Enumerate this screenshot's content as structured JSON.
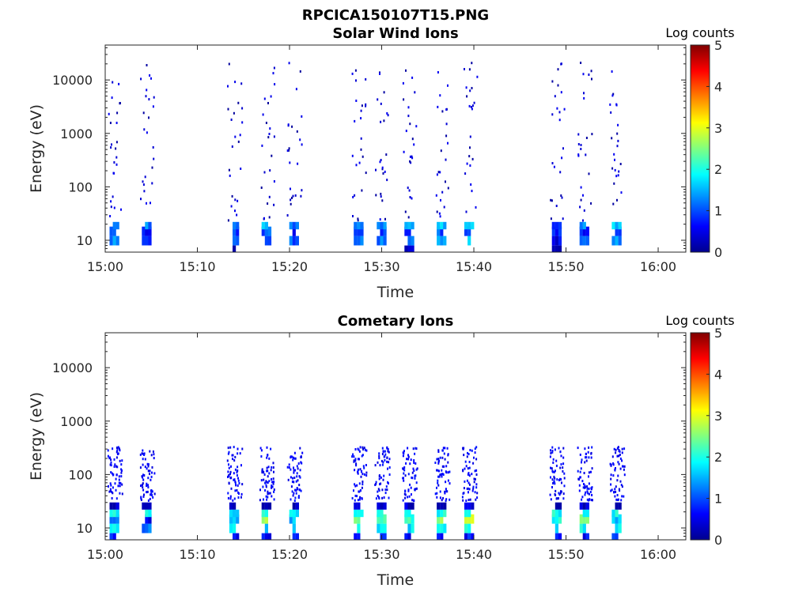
{
  "figure_title": "RPCICA150107T15.PNG",
  "chart_data": [
    {
      "type": "heatmap",
      "title": "Solar Wind Ions",
      "xlabel": "Time",
      "ylabel": "Energy (eV)",
      "y_scale": "log",
      "x_ticks": [
        "15:00",
        "15:10",
        "15:20",
        "15:30",
        "15:40",
        "15:50",
        "16:00"
      ],
      "y_ticks": [
        "10",
        "100",
        "1000",
        "10000"
      ],
      "xlim": [
        "15:00",
        "16:03"
      ],
      "ylim": [
        6,
        45000
      ],
      "colorbar": {
        "label": "Log counts",
        "ticks": [
          "0",
          "1",
          "2",
          "3",
          "4",
          "5"
        ],
        "range": [
          0,
          5
        ],
        "colormap": "jet"
      },
      "bursts": [
        {
          "t": "15:01",
          "low": [
            [
              8,
              12,
              1.2
            ],
            [
              12,
              18,
              0.8
            ],
            [
              16,
              22,
              1.5
            ]
          ],
          "scatter": [
            0.5,
            1.2,
            1.6
          ]
        },
        {
          "t": "15:04.5",
          "low": [
            [
              8,
              12,
              1.0
            ],
            [
              12,
              18,
              0.7
            ],
            [
              16,
              22,
              1.3
            ]
          ],
          "scatter": [
            0.5,
            1.2,
            1.6
          ]
        },
        {
          "t": "15:14",
          "low": [
            [
              6,
              8,
              0.3
            ],
            [
              8,
              12,
              1.0
            ],
            [
              12,
              18,
              0.9
            ],
            [
              16,
              22,
              1.2
            ]
          ],
          "scatter": [
            0.4,
            1.1,
            1.5
          ]
        },
        {
          "t": "15:17.5",
          "low": [
            [
              8,
              12,
              1.2
            ],
            [
              12,
              18,
              1.0
            ],
            [
              16,
              22,
              1.5
            ]
          ],
          "scatter": [
            0.4,
            1.1,
            1.5
          ]
        },
        {
          "t": "15:20.5",
          "low": [
            [
              8,
              12,
              1.0
            ],
            [
              12,
              18,
              0.8
            ],
            [
              16,
              22,
              1.2
            ]
          ],
          "scatter": [
            0.4,
            1.1,
            1.5
          ]
        },
        {
          "t": "15:27.5",
          "low": [
            [
              8,
              12,
              1.2
            ],
            [
              12,
              18,
              0.8
            ],
            [
              16,
              22,
              1.4
            ]
          ],
          "scatter": [
            0.5,
            1.2,
            1.6
          ]
        },
        {
          "t": "15:30",
          "low": [
            [
              8,
              12,
              1.2
            ],
            [
              12,
              18,
              1.0
            ],
            [
              16,
              22,
              1.4
            ]
          ],
          "scatter": [
            0.5,
            1.2,
            1.6
          ]
        },
        {
          "t": "15:33",
          "low": [
            [
              6,
              8,
              0.3
            ],
            [
              8,
              12,
              1.2
            ],
            [
              12,
              18,
              1.0
            ],
            [
              16,
              22,
              1.4
            ]
          ],
          "scatter": [
            0.5,
            1.2,
            1.6
          ]
        },
        {
          "t": "15:36.5",
          "low": [
            [
              8,
              12,
              1.4
            ],
            [
              12,
              18,
              1.0
            ],
            [
              16,
              22,
              1.6
            ]
          ],
          "scatter": [
            0.5,
            1.2,
            1.6
          ]
        },
        {
          "t": "15:39.5",
          "low": [
            [
              8,
              12,
              1.6
            ],
            [
              12,
              18,
              1.2
            ],
            [
              16,
              22,
              1.8
            ]
          ],
          "scatter": [
            0.5,
            1.2,
            1.6
          ]
        },
        {
          "t": "15:49",
          "low": [
            [
              6,
              8,
              0.3
            ],
            [
              8,
              12,
              0.6
            ],
            [
              12,
              18,
              0.8
            ],
            [
              16,
              22,
              1.0
            ]
          ],
          "scatter": [
            0.5,
            1.2,
            1.6
          ]
        },
        {
          "t": "15:52",
          "low": [
            [
              8,
              12,
              1.0
            ],
            [
              12,
              18,
              0.8
            ],
            [
              16,
              22,
              1.2
            ]
          ],
          "scatter": [
            0.5,
            1.2,
            1.6
          ]
        },
        {
          "t": "15:55.5",
          "low": [
            [
              8,
              12,
              1.3
            ],
            [
              12,
              18,
              1.0
            ],
            [
              16,
              22,
              1.5
            ]
          ],
          "scatter": [
            0.5,
            1.2,
            1.6
          ]
        }
      ]
    },
    {
      "type": "heatmap",
      "title": "Cometary Ions",
      "xlabel": "Time",
      "ylabel": "Energy (eV)",
      "y_scale": "log",
      "x_ticks": [
        "15:00",
        "15:10",
        "15:20",
        "15:30",
        "15:40",
        "15:50",
        "16:00"
      ],
      "y_ticks": [
        "10",
        "100",
        "1000",
        "10000"
      ],
      "xlim": [
        "15:00",
        "16:03"
      ],
      "ylim": [
        6,
        45000
      ],
      "colorbar": {
        "label": "Log counts",
        "ticks": [
          "0",
          "1",
          "2",
          "3",
          "4",
          "5"
        ],
        "range": [
          0,
          5
        ],
        "colormap": "jet"
      },
      "bursts": [
        {
          "t": "15:01",
          "low": [
            [
              6,
              8,
              0.7
            ],
            [
              8,
              12,
              1.8
            ],
            [
              12,
              18,
              1.0
            ],
            [
              16,
              22,
              1.9
            ],
            [
              22,
              30,
              0.3
            ]
          ],
          "scatter": [
            1.6,
            2.1,
            2.3
          ]
        },
        {
          "t": "15:04.5",
          "low": [
            [
              8,
              12,
              1.2
            ],
            [
              12,
              18,
              0.6
            ],
            [
              16,
              22,
              1.8
            ],
            [
              22,
              30,
              0.3
            ]
          ],
          "scatter": [
            1.5,
            2.0,
            2.3
          ]
        },
        {
          "t": "15:14",
          "low": [
            [
              6,
              8,
              0.7
            ],
            [
              8,
              12,
              2.0
            ],
            [
              12,
              18,
              1.6
            ],
            [
              16,
              22,
              1.8
            ],
            [
              22,
              30,
              0.3
            ]
          ],
          "scatter": [
            1.6,
            2.1,
            2.4
          ]
        },
        {
          "t": "15:17.5",
          "low": [
            [
              6,
              8,
              0.7
            ],
            [
              8,
              12,
              1.8
            ],
            [
              12,
              18,
              2.6
            ],
            [
              16,
              22,
              1.9
            ],
            [
              22,
              30,
              0.3
            ]
          ],
          "scatter": [
            1.6,
            2.1,
            2.4
          ]
        },
        {
          "t": "15:20.5",
          "low": [
            [
              6,
              8,
              0.7
            ],
            [
              8,
              12,
              1.8
            ],
            [
              12,
              18,
              1.5
            ],
            [
              16,
              22,
              1.9
            ],
            [
              22,
              30,
              0.3
            ]
          ],
          "scatter": [
            1.6,
            2.1,
            2.4
          ]
        },
        {
          "t": "15:27.5",
          "low": [
            [
              6,
              8,
              0.7
            ],
            [
              8,
              12,
              1.8
            ],
            [
              12,
              18,
              2.4
            ],
            [
              16,
              22,
              1.9
            ],
            [
              22,
              30,
              0.3
            ]
          ],
          "scatter": [
            1.5,
            2.1,
            2.4
          ]
        },
        {
          "t": "15:30",
          "low": [
            [
              6,
              8,
              0.7
            ],
            [
              8,
              12,
              1.8
            ],
            [
              12,
              18,
              2.3
            ],
            [
              16,
              22,
              1.9
            ],
            [
              22,
              30,
              0.3
            ]
          ],
          "scatter": [
            1.6,
            2.1,
            2.4
          ]
        },
        {
          "t": "15:33",
          "low": [
            [
              6,
              8,
              0.7
            ],
            [
              8,
              12,
              1.8
            ],
            [
              12,
              18,
              2.2
            ],
            [
              16,
              22,
              1.9
            ],
            [
              22,
              30,
              0.3
            ]
          ],
          "scatter": [
            1.6,
            2.1,
            2.4
          ]
        },
        {
          "t": "15:36.5",
          "low": [
            [
              6,
              8,
              0.7
            ],
            [
              8,
              12,
              1.9
            ],
            [
              12,
              18,
              2.5
            ],
            [
              16,
              22,
              2.0
            ],
            [
              22,
              30,
              0.3
            ]
          ],
          "scatter": [
            1.6,
            2.1,
            2.4
          ]
        },
        {
          "t": "15:39.5",
          "low": [
            [
              6,
              8,
              0.7
            ],
            [
              8,
              12,
              1.9
            ],
            [
              12,
              18,
              2.7
            ],
            [
              16,
              22,
              2.0
            ],
            [
              22,
              30,
              0.3
            ]
          ],
          "scatter": [
            1.6,
            2.1,
            2.4
          ]
        },
        {
          "t": "15:49",
          "low": [
            [
              6,
              8,
              0.7
            ],
            [
              8,
              12,
              1.8
            ],
            [
              12,
              18,
              1.9
            ],
            [
              16,
              22,
              1.9
            ],
            [
              22,
              30,
              0.3
            ]
          ],
          "scatter": [
            1.6,
            2.0,
            2.3
          ]
        },
        {
          "t": "15:52",
          "low": [
            [
              6,
              8,
              0.7
            ],
            [
              8,
              12,
              1.9
            ],
            [
              12,
              18,
              2.6
            ],
            [
              16,
              22,
              2.0
            ],
            [
              22,
              30,
              0.3
            ]
          ],
          "scatter": [
            1.6,
            2.1,
            2.4
          ]
        },
        {
          "t": "15:55.5",
          "low": [
            [
              6,
              8,
              0.7
            ],
            [
              8,
              12,
              1.8
            ],
            [
              12,
              18,
              1.5
            ],
            [
              16,
              22,
              1.9
            ],
            [
              22,
              30,
              0.3
            ]
          ],
          "scatter": [
            1.6,
            2.0,
            2.3
          ]
        }
      ]
    }
  ]
}
